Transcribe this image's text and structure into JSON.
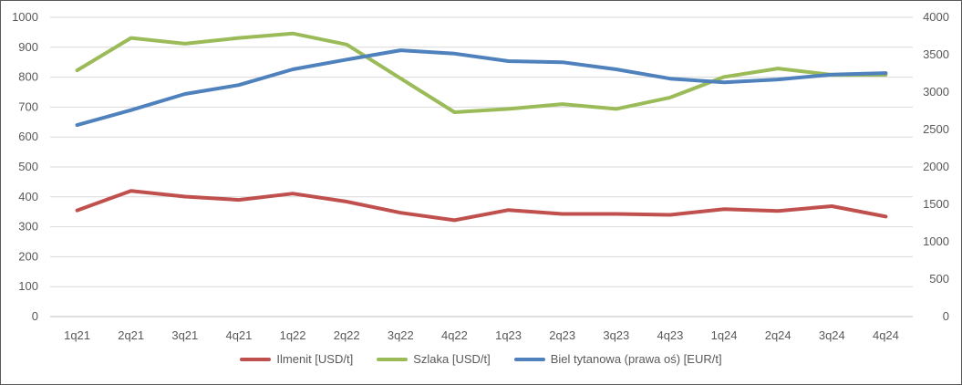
{
  "chart_data": {
    "type": "line",
    "categories": [
      "1q21",
      "2q21",
      "3q21",
      "4q21",
      "1q22",
      "2q22",
      "3q22",
      "4q22",
      "1q23",
      "2q23",
      "3q23",
      "4q23",
      "1q24",
      "2q24",
      "3q24",
      "4q24"
    ],
    "series": [
      {
        "name": "Ilmenit [USD/t]",
        "axis": "left",
        "color": "#c0504d",
        "values": [
          355,
          420,
          401,
          390,
          411,
          384,
          347,
          322,
          356,
          343,
          343,
          340,
          359,
          353,
          369,
          334
        ]
      },
      {
        "name": "Szlaka [USD/t]",
        "axis": "left",
        "color": "#9bbb59",
        "values": [
          823,
          931,
          912,
          931,
          946,
          909,
          796,
          683,
          694,
          710,
          694,
          732,
          801,
          829,
          808,
          808
        ]
      },
      {
        "name": "Biel tytanowa (prawa oś) [EUR/t]",
        "axis": "right",
        "color": "#4f81bd",
        "values": [
          2560,
          2760,
          2975,
          3095,
          3305,
          3435,
          3560,
          3515,
          3415,
          3400,
          3305,
          3180,
          3130,
          3170,
          3235,
          3255
        ]
      }
    ],
    "y_left": {
      "lim": [
        0,
        1000
      ],
      "ticks": [
        "0",
        "100",
        "200",
        "300",
        "400",
        "500",
        "600",
        "700",
        "800",
        "900",
        "1000"
      ]
    },
    "y_right": {
      "lim": [
        0,
        4000
      ],
      "ticks": [
        "0",
        "500",
        "1000",
        "1500",
        "2000",
        "2500",
        "3000",
        "3500",
        "4000"
      ]
    },
    "grid": true,
    "legend_position": "bottom"
  }
}
